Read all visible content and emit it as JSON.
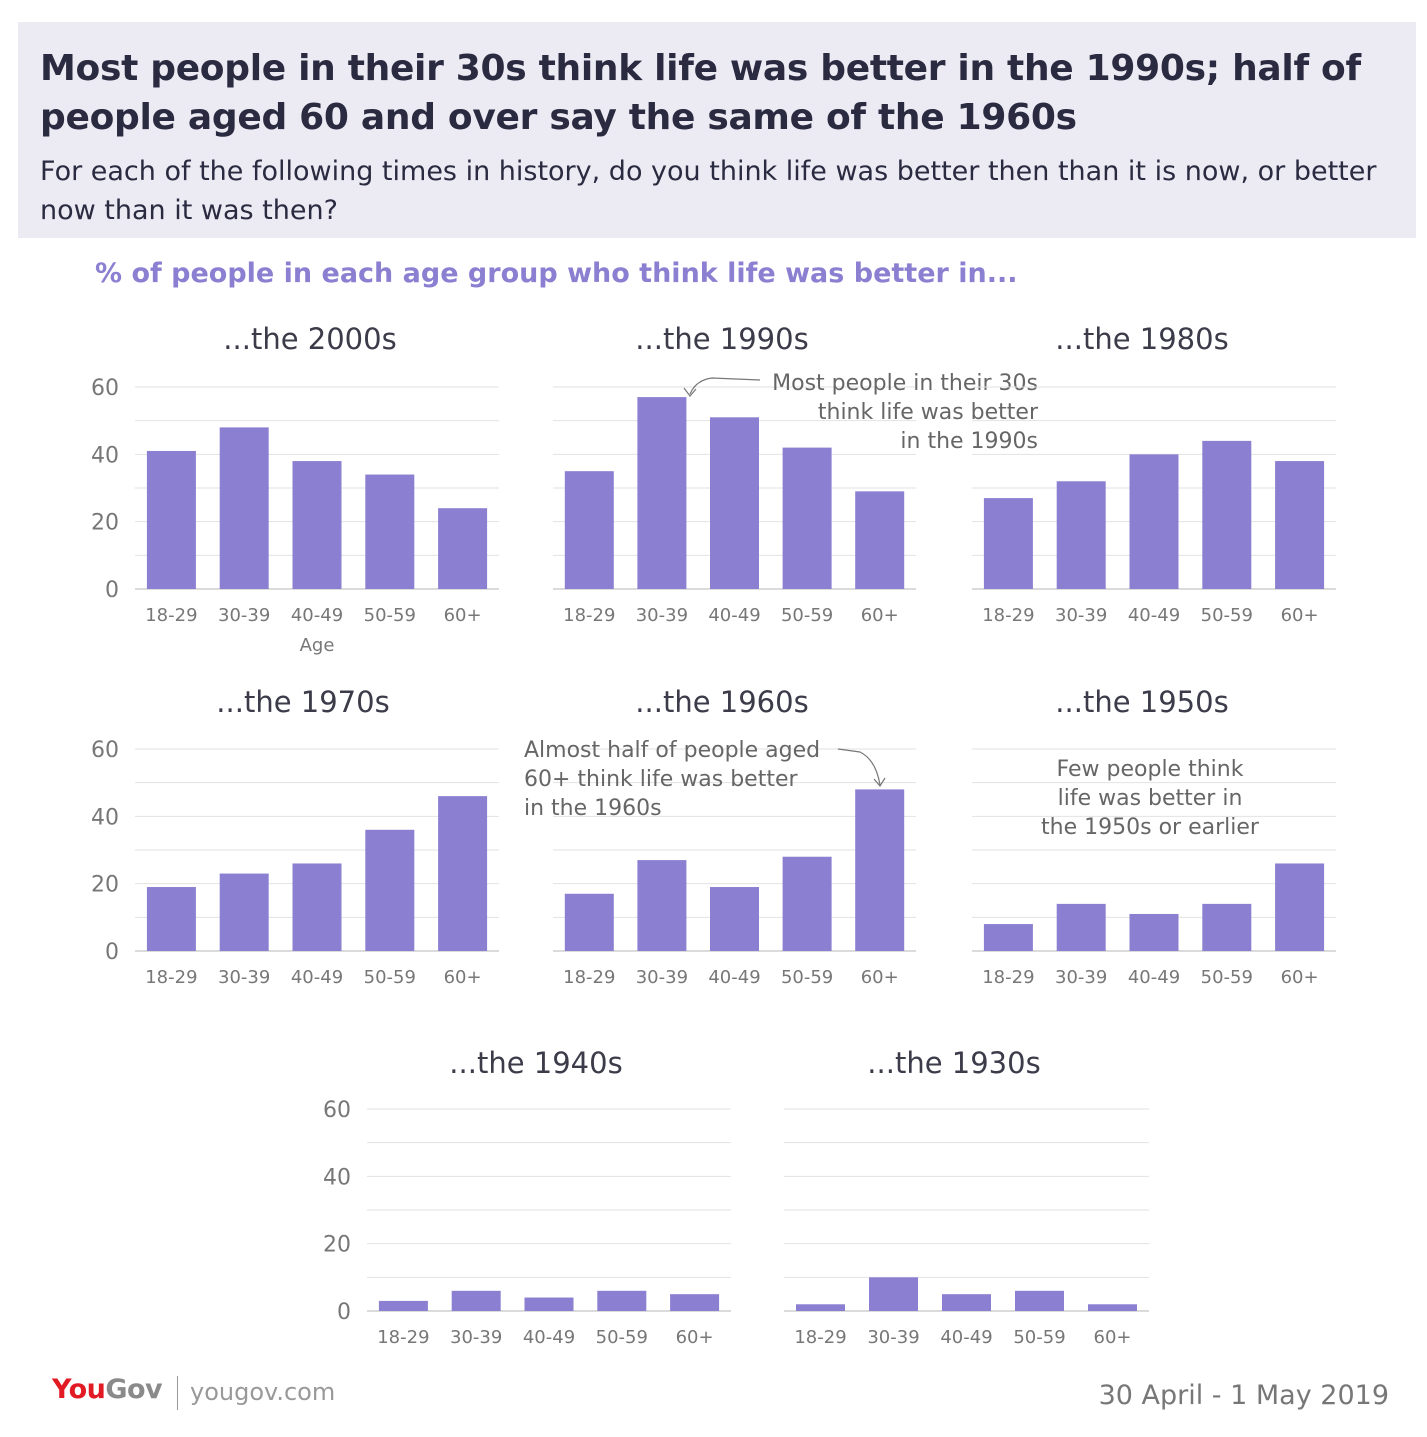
{
  "header": {
    "title": "Most people in their 30s think life was better in the 1990s; half of people aged 60 and over say the same of the 1960s",
    "subtitle": "For each of the following times in history, do you think life was better then than it is now, or better now than it was then?"
  },
  "section_label": "% of people in each age group who think life was better in...",
  "colors": {
    "bar": "#8b7fd1",
    "grid": "#e2e2e2",
    "axis_text": "#777777",
    "accent": "#8b7fd1",
    "header_bg": "#ecebf4"
  },
  "chart_data": [
    {
      "type": "bar",
      "title": "...the 2000s",
      "xlabel": "Age",
      "ylabel": "",
      "ylim": [
        0,
        60
      ],
      "yticks": [
        "0",
        "20",
        "40",
        "60"
      ],
      "categories": [
        "18-29",
        "30-39",
        "40-49",
        "50-59",
        "60+"
      ],
      "values": [
        41,
        48,
        38,
        34,
        24
      ]
    },
    {
      "type": "bar",
      "title": "...the 1990s",
      "xlabel": "",
      "ylabel": "",
      "ylim": [
        0,
        60
      ],
      "yticks": [],
      "categories": [
        "18-29",
        "30-39",
        "40-49",
        "50-59",
        "60+"
      ],
      "values": [
        35,
        57,
        51,
        42,
        29
      ],
      "annotation": {
        "lines": [
          "Most people in their 30s",
          "think life was better",
          "in the 1990s"
        ],
        "target": "30-39"
      }
    },
    {
      "type": "bar",
      "title": "...the 1980s",
      "xlabel": "",
      "ylabel": "",
      "ylim": [
        0,
        60
      ],
      "yticks": [],
      "categories": [
        "18-29",
        "30-39",
        "40-49",
        "50-59",
        "60+"
      ],
      "values": [
        27,
        32,
        40,
        44,
        38
      ]
    },
    {
      "type": "bar",
      "title": "...the 1970s",
      "xlabel": "",
      "ylabel": "",
      "ylim": [
        0,
        60
      ],
      "yticks": [
        "0",
        "20",
        "40",
        "60"
      ],
      "categories": [
        "18-29",
        "30-39",
        "40-49",
        "50-59",
        "60+"
      ],
      "values": [
        19,
        23,
        26,
        36,
        46
      ]
    },
    {
      "type": "bar",
      "title": "...the 1960s",
      "xlabel": "",
      "ylabel": "",
      "ylim": [
        0,
        60
      ],
      "yticks": [],
      "categories": [
        "18-29",
        "30-39",
        "40-49",
        "50-59",
        "60+"
      ],
      "values": [
        17,
        27,
        19,
        28,
        48
      ],
      "annotation": {
        "lines": [
          "Almost half of people aged",
          "60+ think life was better",
          "in the 1960s"
        ],
        "target": "60+"
      }
    },
    {
      "type": "bar",
      "title": "...the 1950s",
      "xlabel": "",
      "ylabel": "",
      "ylim": [
        0,
        60
      ],
      "yticks": [],
      "categories": [
        "18-29",
        "30-39",
        "40-49",
        "50-59",
        "60+"
      ],
      "values": [
        8,
        14,
        11,
        14,
        26
      ],
      "annotation": {
        "lines": [
          "Few people think",
          "life was better in",
          "the 1950s or earlier"
        ]
      }
    },
    {
      "type": "bar",
      "title": "...the 1940s",
      "xlabel": "",
      "ylabel": "",
      "ylim": [
        0,
        60
      ],
      "yticks": [
        "0",
        "20",
        "40",
        "60"
      ],
      "categories": [
        "18-29",
        "30-39",
        "40-49",
        "50-59",
        "60+"
      ],
      "values": [
        3,
        6,
        4,
        6,
        5
      ]
    },
    {
      "type": "bar",
      "title": "...the 1930s",
      "xlabel": "",
      "ylabel": "",
      "ylim": [
        0,
        60
      ],
      "yticks": [],
      "categories": [
        "18-29",
        "30-39",
        "40-49",
        "50-59",
        "60+"
      ],
      "values": [
        2,
        10,
        5,
        6,
        2
      ]
    }
  ],
  "footer": {
    "logo_you": "You",
    "logo_gov": "Gov",
    "url": "yougov.com",
    "date": "30 April - 1 May 2019"
  }
}
